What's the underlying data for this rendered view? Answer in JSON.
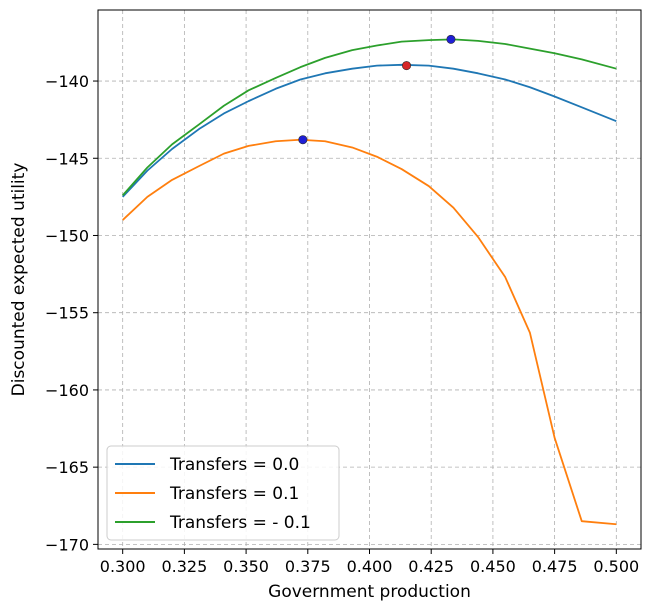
{
  "chart_data": {
    "type": "line",
    "title": "",
    "xlabel": "Government production",
    "ylabel": "Discounted expected utility",
    "xlim": [
      0.29,
      0.51
    ],
    "ylim": [
      -170.3,
      -135.4
    ],
    "xticks": [
      0.3,
      0.325,
      0.35,
      0.375,
      0.4,
      0.425,
      0.45,
      0.475,
      0.5
    ],
    "xtick_labels": [
      "0.300",
      "0.325",
      "0.350",
      "0.375",
      "0.400",
      "0.425",
      "0.450",
      "0.475",
      "0.500"
    ],
    "yticks": [
      -170,
      -165,
      -160,
      -155,
      -150,
      -145,
      -140
    ],
    "ytick_labels": [
      "−170",
      "−165",
      "−160",
      "−155",
      "−150",
      "−145",
      "−140"
    ],
    "grid": true,
    "legend_position": "lower-left",
    "x": [
      0.3,
      0.31,
      0.32,
      0.331,
      0.341,
      0.351,
      0.362,
      0.372,
      0.382,
      0.393,
      0.403,
      0.413,
      0.424,
      0.434,
      0.444,
      0.455,
      0.465,
      0.475,
      0.486,
      0.5
    ],
    "series": [
      {
        "name": "Transfers = 0.0",
        "color": "#1f77b4",
        "values": [
          -147.5,
          -145.8,
          -144.4,
          -143.1,
          -142.1,
          -141.3,
          -140.5,
          -139.9,
          -139.5,
          -139.2,
          -139.0,
          -138.95,
          -139.0,
          -139.2,
          -139.5,
          -139.9,
          -140.4,
          -141.0,
          -141.7,
          -142.6
        ]
      },
      {
        "name": "Transfers = 0.1",
        "color": "#ff7f0e",
        "values": [
          -149.0,
          -147.5,
          -146.4,
          -145.5,
          -144.7,
          -144.2,
          -143.9,
          -143.8,
          -143.9,
          -144.3,
          -144.9,
          -145.7,
          -146.8,
          -148.2,
          -150.1,
          -152.7,
          -156.3,
          -163.1,
          -168.5,
          -168.7
        ]
      },
      {
        "name": "Transfers = - 0.1",
        "color": "#2ca02c",
        "values": [
          -147.4,
          -145.6,
          -144.1,
          -142.8,
          -141.6,
          -140.6,
          -139.8,
          -139.1,
          -138.5,
          -138.0,
          -137.7,
          -137.45,
          -137.35,
          -137.3,
          -137.4,
          -137.6,
          -137.9,
          -138.2,
          -138.6,
          -139.2
        ]
      }
    ],
    "markers": [
      {
        "x": 0.433,
        "y": -137.3,
        "color": "#1f1fd6"
      },
      {
        "x": 0.415,
        "y": -139.0,
        "color": "#d62728"
      },
      {
        "x": 0.373,
        "y": -143.8,
        "color": "#1f1fd6"
      }
    ]
  }
}
